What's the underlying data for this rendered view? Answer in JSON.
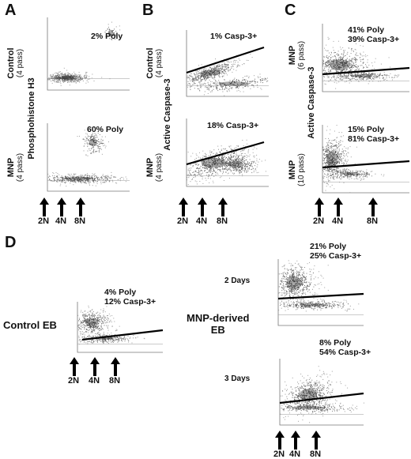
{
  "panels": {
    "A": {
      "letter": "A",
      "row_labels": [
        {
          "main": "Control",
          "sub": "(4 pass)"
        },
        {
          "main": "MNP",
          "sub": "(4 pass)"
        }
      ],
      "axis_label": "Phosphohistone H3",
      "annotations": [
        [
          "2% Poly"
        ],
        [
          "60% Poly"
        ]
      ]
    },
    "B": {
      "letter": "B",
      "row_labels": [
        {
          "main": "Control",
          "sub": "(4 pass)"
        },
        {
          "main": "MNP",
          "sub": "(4 pass)"
        }
      ],
      "axis_label": "Active Caspase-3",
      "annotations": [
        [
          "1% Casp-3+"
        ],
        [
          "18% Casp-3+"
        ]
      ]
    },
    "C": {
      "letter": "C",
      "row_labels": [
        {
          "main": "MNP",
          "sub": "(6 pass)"
        },
        {
          "main": "MNP",
          "sub": "(10 pass)"
        }
      ],
      "axis_label": "Active Caspase-3",
      "annotations": [
        [
          "41% Poly",
          "39% Casp-3+"
        ],
        [
          "15% Poly",
          "81% Casp-3+"
        ]
      ]
    },
    "D": {
      "letter": "D",
      "control_label": "Control EB",
      "mnp_label": [
        "MNP-derived",
        "EB"
      ],
      "day_labels": [
        "2 Days",
        "3 Days"
      ],
      "annotations": [
        [
          "4% Poly",
          "12% Casp-3+"
        ],
        [
          "21% Poly",
          "25% Casp-3+"
        ],
        [
          "8% Poly",
          "54% Casp-3+"
        ]
      ]
    }
  },
  "ploidy_labels": [
    "2N",
    "4N",
    "8N"
  ]
}
